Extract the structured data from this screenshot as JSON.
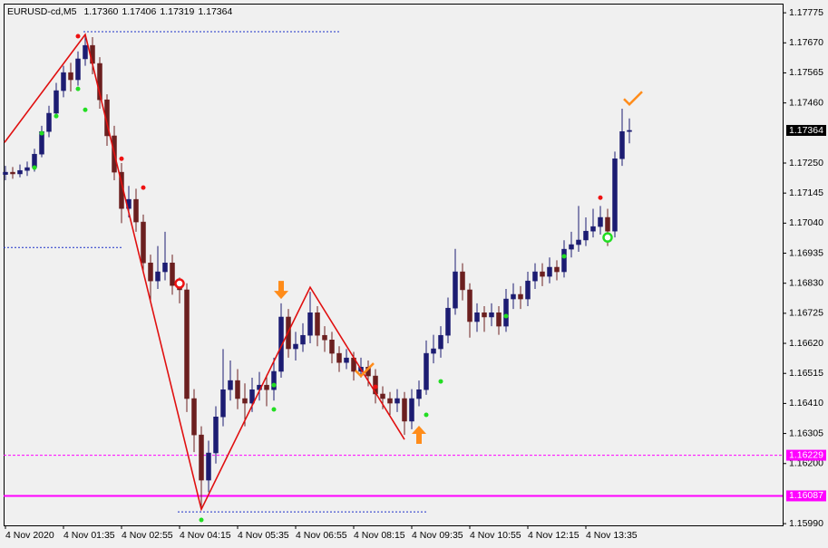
{
  "chart_data": {
    "type": "candlestick",
    "title": "EURUSD-cd,M5",
    "header_labels": [
      "1.17360",
      "1.17406",
      "1.17319",
      "1.17364"
    ],
    "up_color": "#1c1c72",
    "down_color": "#6b1f1f",
    "categories": [
      "4 Nov 2020",
      null,
      null,
      null,
      null,
      null,
      null,
      null,
      "4 Nov 01:35",
      null,
      null,
      null,
      null,
      null,
      null,
      null,
      "4 Nov 02:55",
      null,
      null,
      null,
      null,
      null,
      null,
      null,
      "4 Nov 04:15",
      null,
      null,
      null,
      null,
      null,
      null,
      null,
      "4 Nov 05:35",
      null,
      null,
      null,
      null,
      null,
      null,
      null,
      "4 Nov 06:55",
      null,
      null,
      null,
      null,
      null,
      null,
      null,
      "4 Nov 08:15",
      null,
      null,
      null,
      null,
      null,
      null,
      null,
      "4 Nov 09:35",
      null,
      null,
      null,
      null,
      null,
      null,
      null,
      "4 Nov 10:55",
      null,
      null,
      null,
      null,
      null,
      null,
      null,
      "4 Nov 12:15",
      null,
      null,
      null,
      null,
      null,
      null,
      null,
      "4 Nov 13:35",
      null,
      null,
      null,
      null,
      null,
      null
    ],
    "ohlc": [
      [
        1.1721,
        1.1724,
        1.1719,
        1.17218
      ],
      [
        1.17218,
        1.17236,
        1.17195,
        1.17212
      ],
      [
        1.17212,
        1.17245,
        1.172,
        1.17224
      ],
      [
        1.17224,
        1.17255,
        1.17205,
        1.17234
      ],
      [
        1.17234,
        1.173,
        1.1722,
        1.17281
      ],
      [
        1.17281,
        1.1738,
        1.1727,
        1.1736
      ],
      [
        1.1736,
        1.1745,
        1.1734,
        1.17424
      ],
      [
        1.17424,
        1.1753,
        1.1741,
        1.17503
      ],
      [
        1.17503,
        1.1759,
        1.1748,
        1.17566
      ],
      [
        1.17566,
        1.176,
        1.175,
        1.17541
      ],
      [
        1.17541,
        1.1764,
        1.1752,
        1.17614
      ],
      [
        1.17614,
        1.177,
        1.1759,
        1.17661
      ],
      [
        1.17661,
        1.1769,
        1.1756,
        1.17598
      ],
      [
        1.17598,
        1.1762,
        1.1744,
        1.17471
      ],
      [
        1.17471,
        1.1749,
        1.1731,
        1.17345
      ],
      [
        1.17345,
        1.1738,
        1.1719,
        1.17218
      ],
      [
        1.17218,
        1.1725,
        1.1704,
        1.17091
      ],
      [
        1.17091,
        1.1717,
        1.1706,
        1.17123
      ],
      [
        1.17123,
        1.1716,
        1.1701,
        1.17044
      ],
      [
        1.17044,
        1.1707,
        1.1687,
        1.16901
      ],
      [
        1.16901,
        1.1693,
        1.1677,
        1.16838
      ],
      [
        1.16838,
        1.1696,
        1.1681,
        1.1687
      ],
      [
        1.1687,
        1.1701,
        1.1684,
        1.16901
      ],
      [
        1.16901,
        1.1693,
        1.1679,
        1.16822
      ],
      [
        1.16822,
        1.1685,
        1.1676,
        1.16807
      ],
      [
        1.16807,
        1.1683,
        1.1638,
        1.16427
      ],
      [
        1.16427,
        1.1646,
        1.1624,
        1.163
      ],
      [
        1.163,
        1.1633,
        1.1604,
        1.16142
      ],
      [
        1.16142,
        1.1628,
        1.161,
        1.16237
      ],
      [
        1.16237,
        1.164,
        1.162,
        1.16363
      ],
      [
        1.16363,
        1.166,
        1.1633,
        1.16458
      ],
      [
        1.16458,
        1.1656,
        1.1642,
        1.1649
      ],
      [
        1.1649,
        1.1653,
        1.1639,
        1.16427
      ],
      [
        1.16427,
        1.1648,
        1.1633,
        1.16411
      ],
      [
        1.16411,
        1.165,
        1.1638,
        1.16458
      ],
      [
        1.16458,
        1.1652,
        1.1642,
        1.16474
      ],
      [
        1.16474,
        1.1651,
        1.164,
        1.16458
      ],
      [
        1.16458,
        1.1657,
        1.1642,
        1.16522
      ],
      [
        1.16522,
        1.1676,
        1.165,
        1.16712
      ],
      [
        1.16712,
        1.1674,
        1.1657,
        1.16601
      ],
      [
        1.16601,
        1.1666,
        1.1656,
        1.16617
      ],
      [
        1.16617,
        1.1669,
        1.1659,
        1.16648
      ],
      [
        1.16648,
        1.168,
        1.1662,
        1.16727
      ],
      [
        1.16727,
        1.1675,
        1.1661,
        1.16648
      ],
      [
        1.16648,
        1.1668,
        1.1659,
        1.16632
      ],
      [
        1.16632,
        1.1666,
        1.1655,
        1.16585
      ],
      [
        1.16585,
        1.1661,
        1.1652,
        1.16553
      ],
      [
        1.16553,
        1.166,
        1.1653,
        1.16569
      ],
      [
        1.16569,
        1.1659,
        1.1649,
        1.16522
      ],
      [
        1.16522,
        1.1657,
        1.165,
        1.16537
      ],
      [
        1.16537,
        1.1656,
        1.1647,
        1.16506
      ],
      [
        1.16506,
        1.1653,
        1.1641,
        1.16443
      ],
      [
        1.16443,
        1.1647,
        1.1639,
        1.16427
      ],
      [
        1.16427,
        1.1645,
        1.1637,
        1.16411
      ],
      [
        1.16411,
        1.1646,
        1.1638,
        1.16427
      ],
      [
        1.16427,
        1.1645,
        1.163,
        1.16348
      ],
      [
        1.16348,
        1.1646,
        1.1632,
        1.16427
      ],
      [
        1.16427,
        1.1649,
        1.164,
        1.16458
      ],
      [
        1.16458,
        1.1663,
        1.1644,
        1.16585
      ],
      [
        1.16585,
        1.1665,
        1.1655,
        1.16601
      ],
      [
        1.16601,
        1.1668,
        1.1657,
        1.16648
      ],
      [
        1.16648,
        1.1678,
        1.1662,
        1.16743
      ],
      [
        1.16743,
        1.1695,
        1.1672,
        1.1687
      ],
      [
        1.1687,
        1.169,
        1.1677,
        1.16807
      ],
      [
        1.16807,
        1.1683,
        1.1664,
        1.16696
      ],
      [
        1.16696,
        1.1676,
        1.1666,
        1.16727
      ],
      [
        1.16727,
        1.1675,
        1.1666,
        1.16712
      ],
      [
        1.16712,
        1.1676,
        1.1668,
        1.16727
      ],
      [
        1.16727,
        1.1675,
        1.1665,
        1.1668
      ],
      [
        1.1668,
        1.1681,
        1.1666,
        1.16775
      ],
      [
        1.16775,
        1.1683,
        1.1674,
        1.16791
      ],
      [
        1.16791,
        1.1682,
        1.1674,
        1.16775
      ],
      [
        1.16775,
        1.1687,
        1.1675,
        1.16838
      ],
      [
        1.16838,
        1.169,
        1.1681,
        1.1687
      ],
      [
        1.1687,
        1.169,
        1.1682,
        1.16854
      ],
      [
        1.16854,
        1.1692,
        1.1683,
        1.16886
      ],
      [
        1.16886,
        1.1691,
        1.1684,
        1.1687
      ],
      [
        1.1687,
        1.1698,
        1.1685,
        1.16949
      ],
      [
        1.16949,
        1.1701,
        1.1692,
        1.16965
      ],
      [
        1.16965,
        1.171,
        1.1694,
        1.16981
      ],
      [
        1.16981,
        1.1706,
        1.1696,
        1.17012
      ],
      [
        1.17012,
        1.1709,
        1.1699,
        1.17028
      ],
      [
        1.17028,
        1.171,
        1.17,
        1.1706
      ],
      [
        1.1706,
        1.1709,
        1.1696,
        1.17012
      ],
      [
        1.17012,
        1.1729,
        1.1699,
        1.17265
      ],
      [
        1.17265,
        1.1744,
        1.1724,
        1.1736
      ],
      [
        1.1736,
        1.17406,
        1.17319,
        1.17364
      ]
    ],
    "ylim": [
      1.15984,
      1.17807
    ],
    "yticks": [
      {
        "value": 1.1599,
        "label": "1.15990"
      },
      {
        "value": 1.162,
        "label": "1.16200"
      },
      {
        "value": 1.16305,
        "label": "1.16305"
      },
      {
        "value": 1.1641,
        "label": "1.16410"
      },
      {
        "value": 1.16515,
        "label": "1.16515"
      },
      {
        "value": 1.1662,
        "label": "1.16620"
      },
      {
        "value": 1.16725,
        "label": "1.16725"
      },
      {
        "value": 1.1683,
        "label": "1.16830"
      },
      {
        "value": 1.16935,
        "label": "1.16935"
      },
      {
        "value": 1.1704,
        "label": "1.17040"
      },
      {
        "value": 1.17145,
        "label": "1.17145"
      },
      {
        "value": 1.1725,
        "label": "1.17250"
      },
      {
        "value": 1.1746,
        "label": "1.17460"
      },
      {
        "value": 1.17565,
        "label": "1.17565"
      },
      {
        "value": 1.1767,
        "label": "1.17670"
      },
      {
        "value": 1.17775,
        "label": "1.17775"
      }
    ],
    "levels": [
      {
        "value": 1.16229,
        "label": "1.16229",
        "color": "#ff00ff",
        "style": "dashed"
      },
      {
        "value": 1.16087,
        "label": "1.16087",
        "color": "#ff00ff",
        "style": "solid"
      }
    ],
    "dotted_levels": [
      {
        "value": 1.17709,
        "from": 11,
        "to": 46
      },
      {
        "value": 1.16955,
        "from": 0,
        "to": 16
      },
      {
        "value": 1.16031,
        "from": 24,
        "to": 58
      }
    ],
    "dotted_color": "#1c2fc8",
    "zigzag_color": "#e01010",
    "zigzag": [
      {
        "index": 0,
        "value": 1.17322
      },
      {
        "index": 11,
        "value": 1.17699
      },
      {
        "index": 27,
        "value": 1.1604
      },
      {
        "index": 42,
        "value": 1.16816
      },
      {
        "index": 55,
        "value": 1.16284
      }
    ],
    "red_dots": [
      {
        "index": 10,
        "value": 1.17693
      },
      {
        "index": 16,
        "value": 1.17265
      },
      {
        "index": 19,
        "value": 1.17164
      },
      {
        "index": 51,
        "value": 1.16468
      },
      {
        "index": 82,
        "value": 1.17129
      }
    ],
    "green_dots": [
      {
        "index": 4,
        "value": 1.17234
      },
      {
        "index": 5,
        "value": 1.17354
      },
      {
        "index": 7,
        "value": 1.17414
      },
      {
        "index": 10,
        "value": 1.17509
      },
      {
        "index": 11,
        "value": 1.17436
      },
      {
        "index": 27,
        "value": 1.16003
      },
      {
        "index": 37,
        "value": 1.16389
      },
      {
        "index": 37,
        "value": 1.16474
      },
      {
        "index": 58,
        "value": 1.1637
      },
      {
        "index": 60,
        "value": 1.16487
      },
      {
        "index": 69,
        "value": 1.16715
      },
      {
        "index": 77,
        "value": 1.16924
      }
    ],
    "red_color": "#ee1111",
    "green_color": "#22dd22",
    "rings": [
      {
        "index": 24,
        "value": 1.16829,
        "color": "#ee1111"
      },
      {
        "index": 83,
        "value": 1.1699,
        "color": "#22dd22"
      }
    ],
    "signal_color": "#ff8c1a",
    "down_arrows": [
      {
        "index": 38,
        "value": 1.16775
      }
    ],
    "up_arrows": [
      {
        "index": 57,
        "value": 1.16332
      }
    ],
    "checks": [
      {
        "index": 49,
        "value": 1.16506
      },
      {
        "index": 86,
        "value": 1.17455
      }
    ],
    "last_price_color": "#000000"
  }
}
